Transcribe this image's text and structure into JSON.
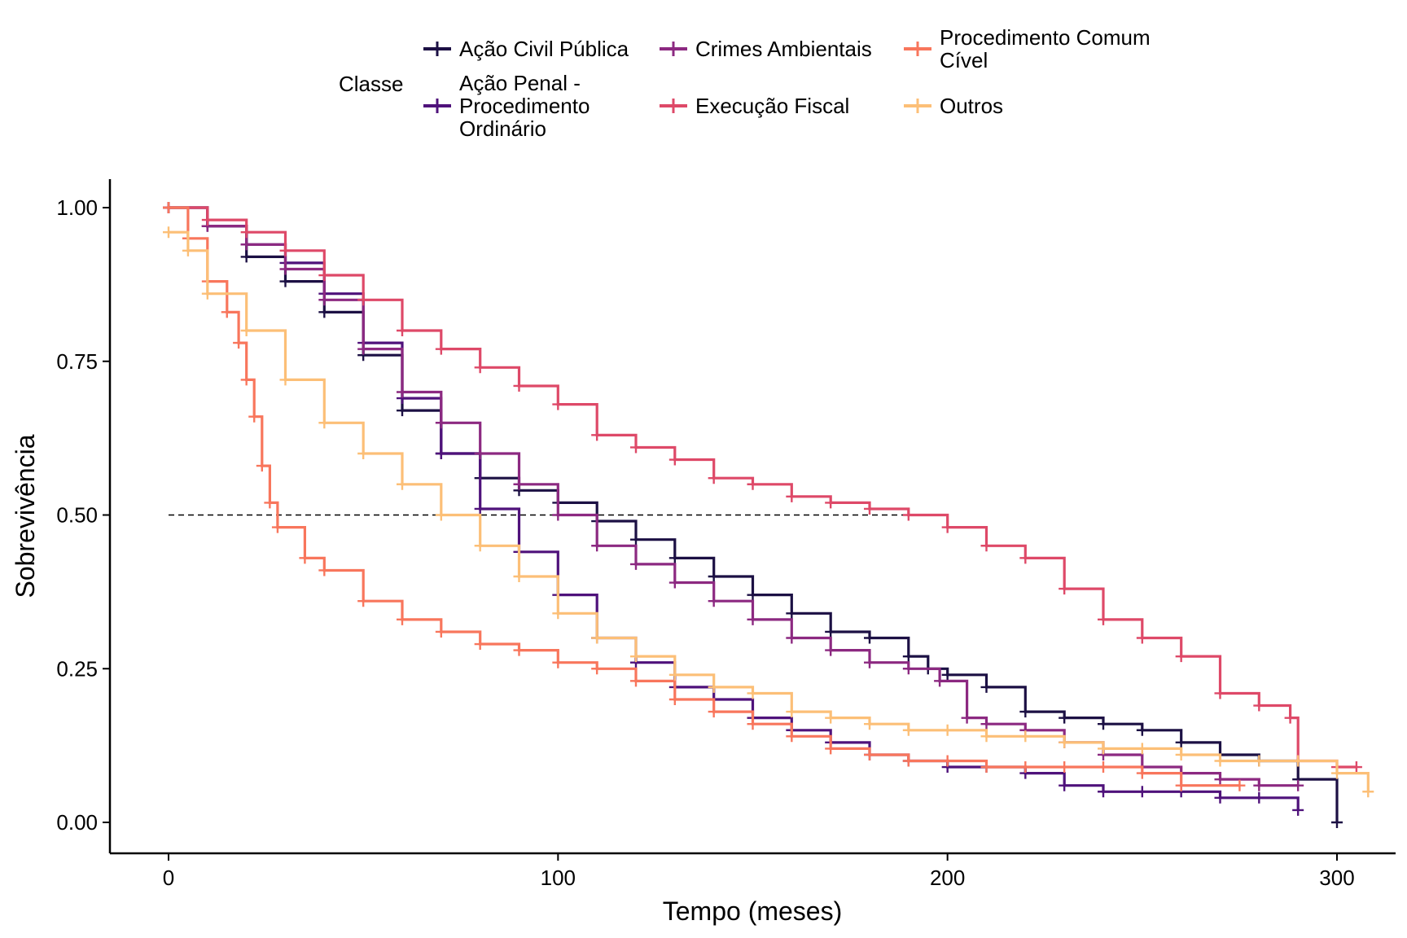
{
  "chart_data": {
    "type": "line",
    "subtype": "kaplan-meier survival curve",
    "xlabel": "Tempo (meses)",
    "ylabel": "Sobrevivência",
    "xlim": [
      -15,
      315
    ],
    "ylim": [
      -0.05,
      1.05
    ],
    "x_ticks": [
      0,
      100,
      200,
      300
    ],
    "x_tick_labels": [
      "0",
      "100",
      "200",
      "300"
    ],
    "y_ticks": [
      0,
      0.25,
      0.5,
      0.75,
      1.0
    ],
    "y_tick_labels": [
      "0.00",
      "0.25",
      "0.50",
      "0.75",
      "1.00"
    ],
    "grid": false,
    "median_line": {
      "y": 0.5,
      "x_start": 0,
      "x_end": 190,
      "style": "dashed"
    },
    "legend": {
      "title": "Classe",
      "position": "top",
      "entries": [
        [
          "Ação Civil Pública"
        ],
        [
          "Ação Penal -",
          "Procedimento",
          "Ordinário"
        ],
        [
          "Crimes Ambientais"
        ],
        [
          "Execução Fiscal"
        ],
        [
          "Procedimento Comum",
          "Cível"
        ],
        [
          "Outros"
        ]
      ]
    },
    "series": [
      {
        "name": "Ação Civil Pública",
        "color": "#1c1044",
        "points": [
          [
            0,
            1.0
          ],
          [
            10,
            0.97
          ],
          [
            20,
            0.92
          ],
          [
            30,
            0.88
          ],
          [
            40,
            0.83
          ],
          [
            50,
            0.76
          ],
          [
            60,
            0.67
          ],
          [
            70,
            0.6
          ],
          [
            80,
            0.56
          ],
          [
            90,
            0.54
          ],
          [
            100,
            0.52
          ],
          [
            110,
            0.49
          ],
          [
            120,
            0.46
          ],
          [
            130,
            0.43
          ],
          [
            140,
            0.4
          ],
          [
            150,
            0.37
          ],
          [
            160,
            0.34
          ],
          [
            170,
            0.31
          ],
          [
            180,
            0.3
          ],
          [
            190,
            0.27
          ],
          [
            195,
            0.25
          ],
          [
            200,
            0.24
          ],
          [
            210,
            0.22
          ],
          [
            220,
            0.18
          ],
          [
            230,
            0.17
          ],
          [
            240,
            0.16
          ],
          [
            250,
            0.15
          ],
          [
            260,
            0.13
          ],
          [
            270,
            0.11
          ],
          [
            280,
            0.1
          ],
          [
            290,
            0.07
          ],
          [
            300,
            0.0
          ]
        ]
      },
      {
        "name": "Ação Penal - Procedimento Ordinário",
        "color": "#4f127b",
        "points": [
          [
            0,
            1.0
          ],
          [
            10,
            0.97
          ],
          [
            20,
            0.94
          ],
          [
            30,
            0.91
          ],
          [
            40,
            0.86
          ],
          [
            50,
            0.78
          ],
          [
            60,
            0.69
          ],
          [
            70,
            0.6
          ],
          [
            80,
            0.51
          ],
          [
            90,
            0.44
          ],
          [
            100,
            0.37
          ],
          [
            110,
            0.3
          ],
          [
            120,
            0.26
          ],
          [
            130,
            0.22
          ],
          [
            140,
            0.2
          ],
          [
            150,
            0.17
          ],
          [
            160,
            0.15
          ],
          [
            170,
            0.13
          ],
          [
            180,
            0.11
          ],
          [
            190,
            0.1
          ],
          [
            200,
            0.09
          ],
          [
            210,
            0.09
          ],
          [
            220,
            0.08
          ],
          [
            230,
            0.06
          ],
          [
            240,
            0.05
          ],
          [
            250,
            0.05
          ],
          [
            260,
            0.05
          ],
          [
            270,
            0.04
          ],
          [
            280,
            0.04
          ],
          [
            290,
            0.02
          ]
        ]
      },
      {
        "name": "Crimes Ambientais",
        "color": "#8c2981",
        "points": [
          [
            0,
            1.0
          ],
          [
            10,
            0.97
          ],
          [
            20,
            0.94
          ],
          [
            30,
            0.9
          ],
          [
            40,
            0.85
          ],
          [
            50,
            0.77
          ],
          [
            60,
            0.7
          ],
          [
            70,
            0.65
          ],
          [
            80,
            0.6
          ],
          [
            90,
            0.55
          ],
          [
            100,
            0.5
          ],
          [
            110,
            0.45
          ],
          [
            120,
            0.42
          ],
          [
            130,
            0.39
          ],
          [
            140,
            0.36
          ],
          [
            150,
            0.33
          ],
          [
            160,
            0.3
          ],
          [
            170,
            0.28
          ],
          [
            180,
            0.26
          ],
          [
            190,
            0.25
          ],
          [
            198,
            0.23
          ],
          [
            205,
            0.17
          ],
          [
            210,
            0.16
          ],
          [
            220,
            0.15
          ],
          [
            230,
            0.13
          ],
          [
            240,
            0.11
          ],
          [
            250,
            0.09
          ],
          [
            260,
            0.08
          ],
          [
            270,
            0.07
          ],
          [
            280,
            0.06
          ],
          [
            290,
            0.06
          ]
        ]
      },
      {
        "name": "Execução Fiscal",
        "color": "#de4968",
        "points": [
          [
            0,
            1.0
          ],
          [
            10,
            0.98
          ],
          [
            20,
            0.96
          ],
          [
            30,
            0.93
          ],
          [
            40,
            0.89
          ],
          [
            50,
            0.85
          ],
          [
            60,
            0.8
          ],
          [
            70,
            0.77
          ],
          [
            80,
            0.74
          ],
          [
            90,
            0.71
          ],
          [
            100,
            0.68
          ],
          [
            110,
            0.63
          ],
          [
            120,
            0.61
          ],
          [
            130,
            0.59
          ],
          [
            140,
            0.56
          ],
          [
            150,
            0.55
          ],
          [
            160,
            0.53
          ],
          [
            170,
            0.52
          ],
          [
            180,
            0.51
          ],
          [
            190,
            0.5
          ],
          [
            200,
            0.48
          ],
          [
            210,
            0.45
          ],
          [
            220,
            0.43
          ],
          [
            230,
            0.38
          ],
          [
            240,
            0.33
          ],
          [
            250,
            0.3
          ],
          [
            260,
            0.27
          ],
          [
            270,
            0.21
          ],
          [
            280,
            0.19
          ],
          [
            288,
            0.17
          ],
          [
            290,
            0.1
          ],
          [
            300,
            0.09
          ],
          [
            305,
            0.09
          ]
        ]
      },
      {
        "name": "Procedimento Comum Cível",
        "color": "#f8765c",
        "points": [
          [
            0,
            1.0
          ],
          [
            5,
            0.95
          ],
          [
            10,
            0.88
          ],
          [
            15,
            0.83
          ],
          [
            18,
            0.78
          ],
          [
            20,
            0.72
          ],
          [
            22,
            0.66
          ],
          [
            24,
            0.58
          ],
          [
            26,
            0.52
          ],
          [
            28,
            0.48
          ],
          [
            35,
            0.43
          ],
          [
            40,
            0.41
          ],
          [
            50,
            0.36
          ],
          [
            60,
            0.33
          ],
          [
            70,
            0.31
          ],
          [
            80,
            0.29
          ],
          [
            90,
            0.28
          ],
          [
            100,
            0.26
          ],
          [
            110,
            0.25
          ],
          [
            120,
            0.23
          ],
          [
            130,
            0.2
          ],
          [
            140,
            0.18
          ],
          [
            150,
            0.16
          ],
          [
            160,
            0.14
          ],
          [
            170,
            0.12
          ],
          [
            180,
            0.11
          ],
          [
            190,
            0.1
          ],
          [
            200,
            0.1
          ],
          [
            210,
            0.09
          ],
          [
            220,
            0.09
          ],
          [
            230,
            0.09
          ],
          [
            240,
            0.09
          ],
          [
            250,
            0.08
          ],
          [
            260,
            0.06
          ],
          [
            275,
            0.06
          ]
        ]
      },
      {
        "name": "Outros",
        "color": "#fcbf77",
        "points": [
          [
            0,
            0.96
          ],
          [
            5,
            0.93
          ],
          [
            10,
            0.86
          ],
          [
            20,
            0.8
          ],
          [
            30,
            0.72
          ],
          [
            40,
            0.65
          ],
          [
            50,
            0.6
          ],
          [
            60,
            0.55
          ],
          [
            70,
            0.5
          ],
          [
            80,
            0.45
          ],
          [
            90,
            0.4
          ],
          [
            100,
            0.34
          ],
          [
            110,
            0.3
          ],
          [
            120,
            0.27
          ],
          [
            130,
            0.24
          ],
          [
            140,
            0.22
          ],
          [
            150,
            0.21
          ],
          [
            160,
            0.18
          ],
          [
            170,
            0.17
          ],
          [
            180,
            0.16
          ],
          [
            190,
            0.15
          ],
          [
            200,
            0.15
          ],
          [
            210,
            0.14
          ],
          [
            220,
            0.14
          ],
          [
            230,
            0.13
          ],
          [
            240,
            0.12
          ],
          [
            250,
            0.12
          ],
          [
            260,
            0.11
          ],
          [
            270,
            0.1
          ],
          [
            280,
            0.1
          ],
          [
            290,
            0.1
          ],
          [
            300,
            0.08
          ],
          [
            308,
            0.05
          ]
        ]
      }
    ]
  }
}
